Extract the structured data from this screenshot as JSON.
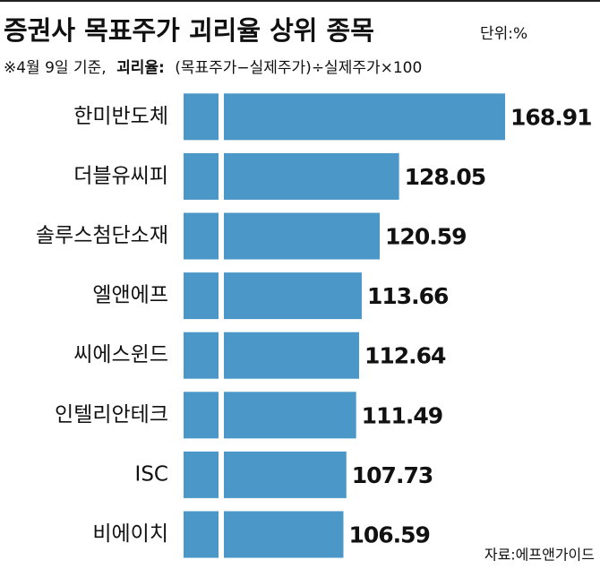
{
  "chart_data": {
    "type": "bar",
    "orientation": "horizontal",
    "title": "증권사 목표주가 괴리율 상위 종목",
    "unit": "단위:%",
    "subtitle_prefix": "※4월 9일 기준,",
    "subtitle_bold": "괴리율:",
    "subtitle_rest": "(목표주가−실제주가)÷실제주가×100",
    "source": "자료:에프앤가이드",
    "categories": [
      "한미반도체",
      "더블유씨피",
      "솔루스첨단소재",
      "엘앤에프",
      "씨에스윈드",
      "인텔리안테크",
      "ISC",
      "비에이치"
    ],
    "values": [
      168.91,
      128.05,
      120.59,
      113.66,
      112.64,
      111.49,
      107.73,
      106.59
    ],
    "value_labels": [
      "168.91",
      "128.05",
      "120.59",
      "113.66",
      "112.64",
      "111.49",
      "107.73",
      "106.59"
    ],
    "color": "#4a97c8",
    "xlim": [
      45,
      172
    ],
    "axis_break": true
  }
}
